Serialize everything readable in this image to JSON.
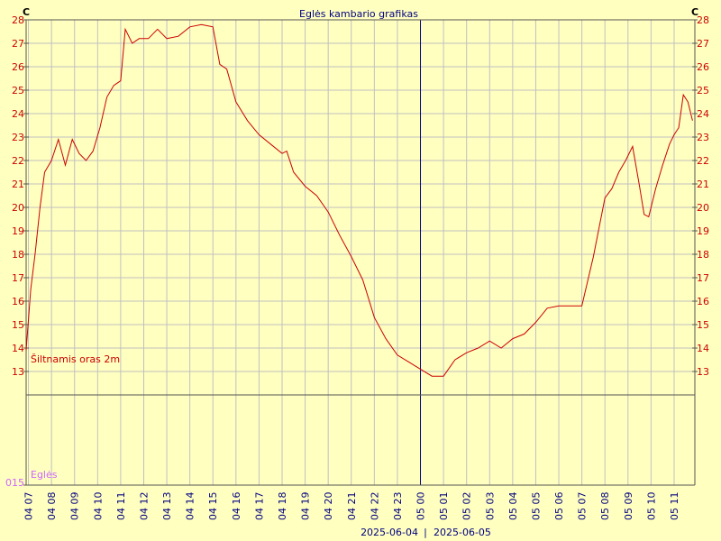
{
  "chart_data": {
    "type": "line",
    "title": "Eglės kambario grafikas",
    "unit_left": "C",
    "unit_right": "C",
    "ylim": [
      12,
      28
    ],
    "y_ticks": [
      "28",
      "27",
      "26",
      "25",
      "24",
      "23",
      "22",
      "21",
      "20",
      "19",
      "18",
      "17",
      "16",
      "15",
      "14",
      "13"
    ],
    "lower_panel_tick": "015",
    "series": [
      {
        "name": "Šiltnamis oras 2m",
        "color": "#cc0000",
        "x": [
          6.9,
          7.1,
          7.3,
          7.5,
          7.7,
          8.0,
          8.3,
          8.6,
          8.9,
          9.2,
          9.5,
          9.8,
          10.1,
          10.4,
          10.7,
          11.0,
          11.2,
          11.5,
          11.8,
          12.2,
          12.6,
          13.0,
          13.5,
          14.0,
          14.5,
          15.0,
          15.3,
          15.6,
          16.0,
          16.5,
          17.0,
          17.5,
          18.0,
          18.2,
          18.5,
          19.0,
          19.5,
          20.0,
          20.5,
          21.0,
          21.5,
          22.0,
          22.5,
          23.0,
          23.5,
          24.0,
          24.5,
          25.0,
          25.5,
          26.0,
          26.5,
          27.0,
          27.5,
          28.0,
          28.5,
          29.0,
          29.5,
          30.0,
          30.5,
          31.0,
          31.5,
          32.0,
          32.3,
          32.6,
          32.9,
          33.2,
          33.5,
          33.7,
          33.9,
          34.2,
          34.5,
          34.8,
          35.0,
          35.2,
          35.4,
          35.6,
          35.8
        ],
        "values": [
          13.9,
          16.5,
          18.1,
          20.0,
          21.5,
          22.0,
          22.9,
          21.8,
          22.9,
          22.3,
          22.0,
          22.4,
          23.4,
          24.7,
          25.2,
          25.4,
          27.6,
          27.0,
          27.2,
          27.2,
          27.6,
          27.2,
          27.3,
          27.7,
          27.8,
          27.7,
          26.1,
          25.9,
          24.5,
          23.7,
          23.1,
          22.7,
          22.3,
          22.4,
          21.5,
          20.9,
          20.5,
          19.8,
          18.8,
          17.9,
          16.9,
          15.3,
          14.4,
          13.7,
          13.4,
          13.1,
          12.8,
          12.8,
          13.5,
          13.8,
          14.0,
          14.3,
          14.0,
          14.4,
          14.6,
          15.1,
          15.7,
          15.8,
          15.8,
          15.8,
          17.9,
          20.4,
          20.8,
          21.5,
          22.0,
          22.6,
          20.9,
          19.7,
          19.6,
          20.8,
          21.8,
          22.7,
          23.1,
          23.4,
          24.8,
          24.5,
          23.7
        ]
      }
    ],
    "lower_series": {
      "name": "Eglės",
      "color": "#cc66ff"
    },
    "x_tick_labels": [
      "04 07",
      "04 08",
      "04 09",
      "04 10",
      "04 11",
      "04 12",
      "04 13",
      "04 14",
      "04 15",
      "04 16",
      "04 17",
      "04 18",
      "04 19",
      "04 20",
      "04 21",
      "04 22",
      "04 23",
      "05 00",
      "05 01",
      "05 02",
      "05 03",
      "05 04",
      "05 05",
      "05 06",
      "05 07",
      "05 08",
      "05 09",
      "05 10",
      "05 11"
    ],
    "x_tick_hours": [
      7,
      8,
      9,
      10,
      11,
      12,
      13,
      14,
      15,
      16,
      17,
      18,
      19,
      20,
      21,
      22,
      23,
      24,
      25,
      26,
      27,
      28,
      29,
      30,
      31,
      32,
      33,
      34,
      35
    ],
    "date_labels": [
      "2025-06-04",
      "2025-06-05"
    ],
    "date_separator": "|",
    "day_boundary_hour": 24,
    "xlim_hours": [
      6.9,
      35.9
    ],
    "grid": true,
    "colors": {
      "background": "#ffffc0",
      "grid": "#c0c0c0",
      "axis_text": "#cc0000",
      "xlabel_text": "#000080",
      "title_text": "#000080"
    }
  }
}
